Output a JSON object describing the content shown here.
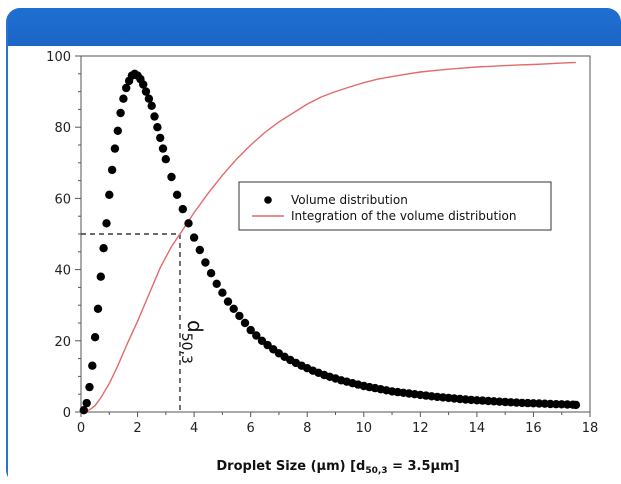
{
  "chart_data": {
    "type": "scatter",
    "xlabel": "Droplet Size (µm) [d",
    "xlabel_sub": "50,3",
    "xlabel_tail": " = 3.5µm]",
    "ylabel": "",
    "xlim": [
      0,
      18
    ],
    "ylim": [
      0,
      100
    ],
    "x_ticks": [
      0,
      2,
      4,
      6,
      8,
      10,
      12,
      14,
      16,
      18
    ],
    "y_ticks": [
      0,
      20,
      40,
      60,
      80,
      100
    ],
    "grid": false,
    "legend_position": "center-right",
    "series": [
      {
        "name": "Volume distribution",
        "kind": "scatter",
        "color": "#000000",
        "x": [
          0.1,
          0.2,
          0.3,
          0.4,
          0.5,
          0.6,
          0.7,
          0.8,
          0.9,
          1.0,
          1.1,
          1.2,
          1.3,
          1.4,
          1.5,
          1.6,
          1.7,
          1.8,
          1.9,
          2.0,
          2.1,
          2.2,
          2.3,
          2.4,
          2.5,
          2.6,
          2.7,
          2.8,
          2.9,
          3.0,
          3.2,
          3.4,
          3.6,
          3.8,
          4.0,
          4.2,
          4.4,
          4.6,
          4.8,
          5.0,
          5.2,
          5.4,
          5.6,
          5.8,
          6.0,
          6.2,
          6.4,
          6.6,
          6.8,
          7.0,
          7.2,
          7.4,
          7.6,
          7.8,
          8.0,
          8.2,
          8.4,
          8.6,
          8.8,
          9.0,
          9.2,
          9.4,
          9.6,
          9.8,
          10.0,
          10.2,
          10.4,
          10.6,
          10.8,
          11.0,
          11.2,
          11.4,
          11.6,
          11.8,
          12.0,
          12.2,
          12.4,
          12.6,
          12.8,
          13.0,
          13.2,
          13.4,
          13.6,
          13.8,
          14.0,
          14.2,
          14.4,
          14.6,
          14.8,
          15.0,
          15.2,
          15.4,
          15.6,
          15.8,
          16.0,
          16.2,
          16.4,
          16.6,
          16.8,
          17.0,
          17.2,
          17.4,
          17.5
        ],
        "y": [
          0.5,
          2.5,
          7,
          13,
          21,
          29,
          38,
          46,
          53,
          61,
          68,
          74,
          79,
          84,
          88,
          91,
          93,
          94.5,
          95,
          94.5,
          93.5,
          92,
          90,
          88,
          86,
          83,
          80,
          77,
          74,
          71,
          66,
          61,
          57,
          53,
          49,
          45.5,
          42,
          39,
          36,
          33.5,
          31,
          29,
          27,
          25,
          23,
          21.5,
          20,
          18.8,
          17.6,
          16.5,
          15.5,
          14.6,
          13.8,
          13,
          12.3,
          11.6,
          11,
          10.4,
          9.9,
          9.4,
          8.9,
          8.5,
          8.1,
          7.7,
          7.3,
          7,
          6.7,
          6.4,
          6.1,
          5.8,
          5.6,
          5.4,
          5.2,
          5,
          4.8,
          4.6,
          4.4,
          4.25,
          4.1,
          3.95,
          3.8,
          3.65,
          3.5,
          3.4,
          3.3,
          3.2,
          3.1,
          3,
          2.9,
          2.8,
          2.72,
          2.64,
          2.56,
          2.5,
          2.44,
          2.38,
          2.32,
          2.26,
          2.2,
          2.15,
          2.1,
          2.05,
          2.0
        ]
      },
      {
        "name": "Integration of the volume distribution",
        "kind": "line",
        "color": "#e46a6a",
        "x": [
          0,
          0.3,
          0.5,
          0.7,
          1.0,
          1.3,
          1.6,
          2.0,
          2.4,
          2.8,
          3.2,
          3.5,
          4.0,
          4.5,
          5.0,
          5.5,
          6.0,
          6.5,
          7.0,
          7.5,
          8.0,
          8.5,
          9.0,
          9.5,
          10,
          10.5,
          11,
          11.5,
          12,
          12.5,
          13,
          13.5,
          14,
          14.5,
          15,
          15.5,
          16,
          16.5,
          17,
          17.5
        ],
        "y": [
          0,
          0.6,
          1.8,
          4,
          8,
          13,
          18.5,
          25.5,
          33,
          40.5,
          46.5,
          50,
          56,
          61.5,
          66.5,
          71,
          75,
          78.5,
          81.5,
          84,
          86.5,
          88.5,
          90,
          91.3,
          92.5,
          93.5,
          94.2,
          94.9,
          95.5,
          95.9,
          96.3,
          96.6,
          96.9,
          97.1,
          97.3,
          97.5,
          97.6,
          97.8,
          98,
          98.2
        ]
      }
    ],
    "reference": {
      "x": 3.5,
      "y": 50
    },
    "annotation": {
      "main": "d",
      "sub": "50,3"
    }
  }
}
